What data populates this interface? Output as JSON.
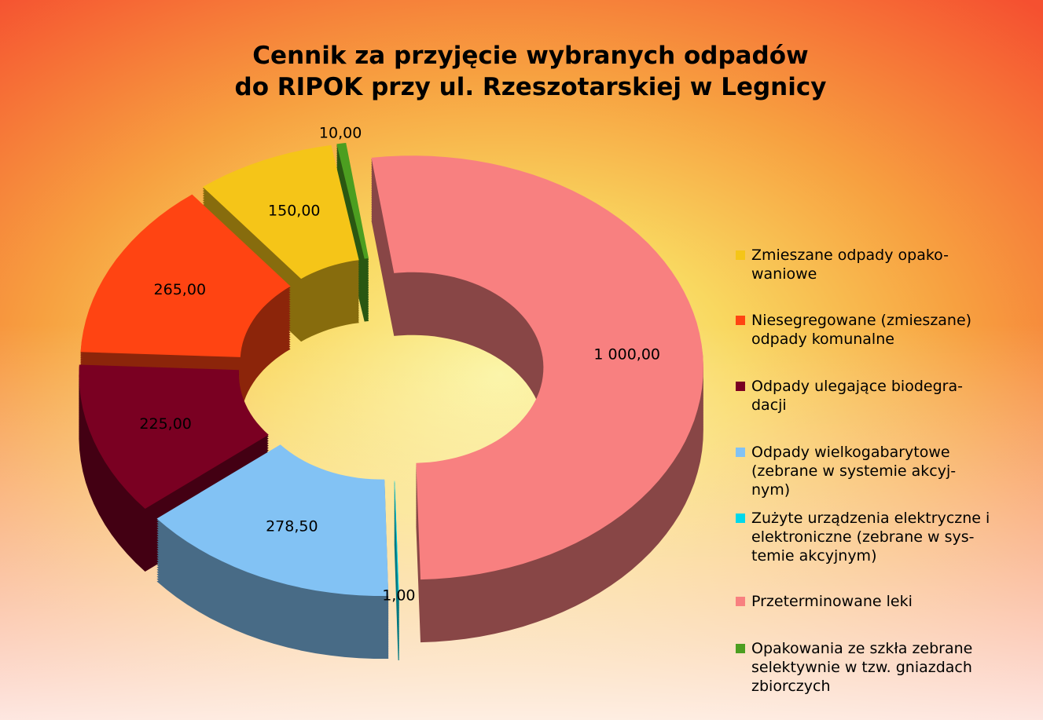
{
  "chart_data": {
    "type": "doughnut3d",
    "title": "Cennik za przyjęcie wybranych odpadów\ndo RIPOK przy ul. Rzeszotarskiej w Legnicy",
    "categories": [
      "Zmieszane odpady opako-\nwaniowe",
      "Niesegregowane (zmieszane)\nodpady komunalne",
      "Odpady ulegające biodegra-\ndacji",
      "Odpady wielkogabarytowe\n(zebrane w systemie akcyj-\nnym)",
      "Zużyte urządzenia elektryczne i\nelektroniczne (zebrane w sys-\ntemie akcyjnym)",
      "Przeterminowane leki",
      "Opakowania ze szkła zebrane\nselektywnie w tzw. gniazdach\nzbiorczych"
    ],
    "values": [
      150,
      265,
      225,
      278.5,
      1,
      1000,
      10
    ],
    "value_labels": [
      "150,00",
      "265,00",
      "225,00",
      "278,50",
      "1,00",
      "1 000,00",
      "10,00"
    ],
    "colors": [
      "#f5c518",
      "#ff4412",
      "#7a0022",
      "#82c2f4",
      "#00d8ea",
      "#f88080",
      "#4c9e20"
    ],
    "legend": "right"
  }
}
